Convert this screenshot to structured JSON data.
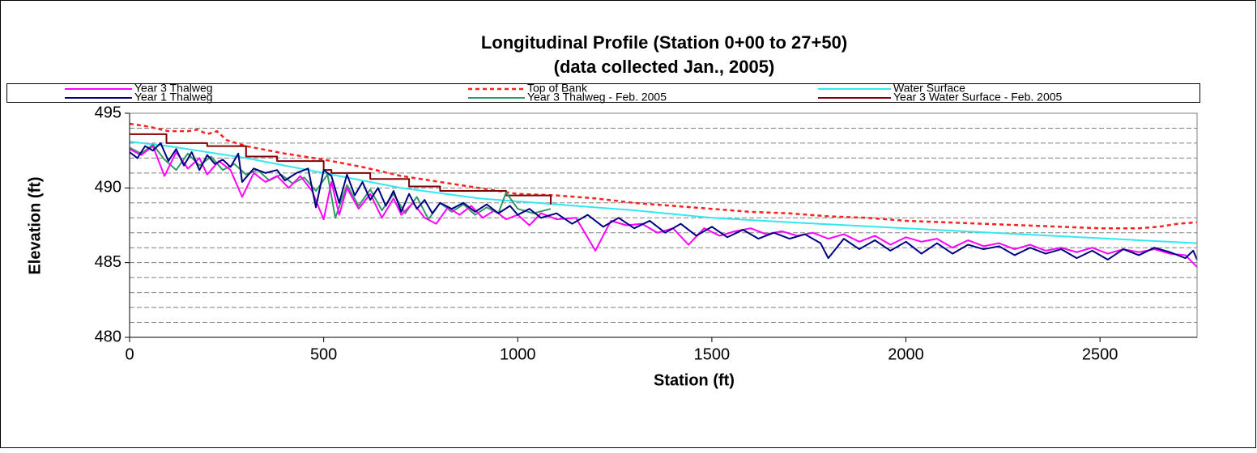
{
  "chart_data": {
    "type": "line",
    "title": "Longitudinal Profile (Station 0+00 to 27+50)",
    "subtitle": "(data collected Jan., 2005)",
    "x_label": "Station (ft)",
    "y_label": "Elevation (ft)",
    "xlim": [
      0,
      2750
    ],
    "ylim": [
      480,
      495
    ],
    "xticks": [
      0,
      500,
      1000,
      1500,
      2000,
      2500
    ],
    "yticks": [
      480,
      485,
      490,
      495
    ],
    "ygrid": [
      481,
      482,
      483,
      484,
      485,
      486,
      487,
      488,
      489,
      490,
      491,
      492,
      493,
      494
    ],
    "legend": "top",
    "series": [
      {
        "name": "Year 3 Thalweg",
        "color": "#ff00ff",
        "dash": "solid",
        "x": [
          0,
          30,
          60,
          90,
          120,
          150,
          180,
          200,
          230,
          260,
          290,
          320,
          350,
          380,
          410,
          440,
          470,
          500,
          520,
          540,
          560,
          590,
          620,
          650,
          680,
          700,
          730,
          760,
          790,
          820,
          850,
          880,
          910,
          940,
          970,
          1000,
          1030,
          1060,
          1100,
          1150,
          1200,
          1240,
          1280,
          1320,
          1360,
          1400,
          1440,
          1480,
          1520,
          1560,
          1600,
          1640,
          1680,
          1720,
          1760,
          1800,
          1840,
          1880,
          1920,
          1960,
          2000,
          2040,
          2080,
          2120,
          2160,
          2200,
          2240,
          2280,
          2320,
          2360,
          2400,
          2440,
          2480,
          2520,
          2560,
          2600,
          2640,
          2680,
          2720,
          2750
        ],
        "values": [
          492.6,
          492.2,
          492.8,
          490.8,
          492.4,
          491.3,
          492.0,
          490.9,
          491.8,
          491.2,
          489.4,
          491.0,
          490.4,
          490.8,
          490.0,
          490.8,
          489.8,
          487.9,
          490.4,
          488.2,
          490.0,
          488.6,
          489.6,
          488.0,
          489.3,
          488.2,
          489.0,
          488.0,
          487.6,
          488.7,
          488.2,
          488.8,
          488.0,
          488.5,
          487.9,
          488.2,
          487.5,
          488.3,
          487.9,
          488.0,
          485.8,
          487.8,
          487.5,
          487.6,
          487.0,
          487.3,
          486.2,
          487.3,
          486.8,
          487.1,
          487.3,
          486.9,
          487.1,
          486.8,
          487.0,
          486.6,
          486.9,
          486.4,
          486.8,
          486.2,
          486.7,
          486.4,
          486.6,
          486.0,
          486.5,
          486.1,
          486.3,
          485.9,
          486.2,
          485.8,
          486.0,
          485.7,
          486.0,
          485.6,
          485.9,
          485.7,
          485.9,
          485.6,
          485.5,
          484.7
        ]
      },
      {
        "name": "Top of Bank",
        "color": "#ff2020",
        "dash": "dotted",
        "x": [
          0,
          50,
          100,
          150,
          175,
          200,
          225,
          250,
          300,
          400,
          500,
          600,
          700,
          800,
          900,
          1000,
          1100,
          1200,
          1300,
          1400,
          1500,
          1600,
          1700,
          1800,
          1900,
          2000,
          2100,
          2200,
          2300,
          2400,
          2500,
          2600,
          2650,
          2700,
          2750
        ],
        "values": [
          494.3,
          494.1,
          493.8,
          493.8,
          493.9,
          493.6,
          493.8,
          493.2,
          492.8,
          492.3,
          491.9,
          491.4,
          490.8,
          490.4,
          490.0,
          489.6,
          489.5,
          489.3,
          489.0,
          488.8,
          488.6,
          488.4,
          488.3,
          488.1,
          488.0,
          487.8,
          487.7,
          487.6,
          487.5,
          487.4,
          487.3,
          487.3,
          487.4,
          487.6,
          487.7
        ]
      },
      {
        "name": "Water Surface",
        "color": "#33e6f0",
        "dash": "solid",
        "x": [
          0,
          100,
          300,
          500,
          700,
          900,
          1100,
          1300,
          1500,
          1700,
          2000,
          2300,
          2600,
          2750
        ],
        "values": [
          493.1,
          492.8,
          492.0,
          491.0,
          490.0,
          489.3,
          488.9,
          488.5,
          488.0,
          487.7,
          487.3,
          486.9,
          486.5,
          486.3
        ]
      },
      {
        "name": "Year 1 Thalweg",
        "color": "#000080",
        "dash": "solid",
        "x": [
          0,
          20,
          40,
          60,
          80,
          100,
          120,
          140,
          160,
          180,
          200,
          220,
          240,
          260,
          280,
          290,
          320,
          350,
          380,
          400,
          430,
          460,
          480,
          500,
          520,
          540,
          560,
          580,
          600,
          620,
          640,
          660,
          680,
          700,
          720,
          740,
          760,
          780,
          800,
          830,
          860,
          890,
          920,
          950,
          980,
          1000,
          1030,
          1060,
          1100,
          1140,
          1180,
          1220,
          1260,
          1300,
          1340,
          1380,
          1420,
          1460,
          1500,
          1540,
          1580,
          1620,
          1660,
          1700,
          1740,
          1780,
          1800,
          1840,
          1880,
          1920,
          1960,
          2000,
          2040,
          2080,
          2120,
          2160,
          2200,
          2240,
          2280,
          2320,
          2360,
          2400,
          2440,
          2480,
          2520,
          2560,
          2600,
          2640,
          2680,
          2720,
          2740,
          2750
        ],
        "values": [
          492.4,
          492.0,
          492.8,
          492.5,
          493.0,
          491.8,
          492.6,
          491.5,
          492.4,
          491.2,
          492.2,
          491.6,
          491.9,
          491.4,
          492.3,
          490.4,
          491.3,
          491.0,
          491.2,
          490.5,
          491.0,
          491.3,
          488.7,
          491.2,
          490.8,
          489.0,
          490.9,
          489.5,
          490.4,
          489.2,
          490.0,
          488.8,
          489.8,
          488.4,
          489.6,
          488.6,
          489.2,
          488.3,
          489.0,
          488.6,
          489.0,
          488.4,
          488.9,
          488.3,
          488.8,
          488.2,
          488.6,
          488.0,
          488.3,
          487.6,
          488.2,
          487.4,
          488.0,
          487.3,
          487.8,
          487.0,
          487.6,
          486.8,
          487.4,
          486.7,
          487.2,
          486.6,
          487.0,
          486.6,
          486.9,
          486.3,
          485.3,
          486.6,
          485.9,
          486.5,
          485.8,
          486.4,
          485.6,
          486.3,
          485.6,
          486.2,
          485.9,
          486.1,
          485.5,
          486.0,
          485.6,
          485.9,
          485.3,
          485.8,
          485.2,
          485.9,
          485.5,
          486.0,
          485.7,
          485.3,
          485.8,
          485.2
        ]
      },
      {
        "name": "Year 3 Thalweg - Feb. 2005",
        "color": "#339966",
        "dash": "solid",
        "x": [
          0,
          30,
          60,
          90,
          120,
          150,
          180,
          210,
          240,
          270,
          300,
          330,
          360,
          390,
          420,
          450,
          480,
          510,
          530,
          560,
          590,
          620,
          650,
          680,
          710,
          740,
          770,
          800,
          830,
          860,
          890,
          920,
          950,
          970,
          1000,
          1040,
          1085
        ],
        "values": [
          492.7,
          492.3,
          492.9,
          491.9,
          491.2,
          492.3,
          491.5,
          492.1,
          491.2,
          491.6,
          490.9,
          491.2,
          490.5,
          490.9,
          490.3,
          490.7,
          489.8,
          490.9,
          488.0,
          490.2,
          488.8,
          489.9,
          488.5,
          489.6,
          488.3,
          489.4,
          487.9,
          489.0,
          488.4,
          488.9,
          488.2,
          488.7,
          488.3,
          489.7,
          488.6,
          488.3,
          488.6
        ]
      },
      {
        "name": "Year 3 Water Surface - Feb. 2005",
        "color": "#800000",
        "dash": "solid",
        "x": [
          0,
          95,
          95,
          200,
          200,
          300,
          300,
          380,
          380,
          500,
          500,
          520,
          520,
          620,
          620,
          720,
          720,
          800,
          800,
          970,
          970,
          1085,
          1085
        ],
        "values": [
          493.6,
          493.6,
          493.0,
          493.0,
          492.8,
          492.8,
          492.1,
          492.1,
          491.8,
          491.8,
          491.2,
          491.2,
          491.0,
          491.0,
          490.6,
          490.6,
          490.1,
          490.1,
          489.8,
          489.8,
          489.5,
          489.5,
          488.9
        ]
      }
    ],
    "draw_order": [
      1,
      2,
      5,
      4,
      0,
      3
    ]
  }
}
